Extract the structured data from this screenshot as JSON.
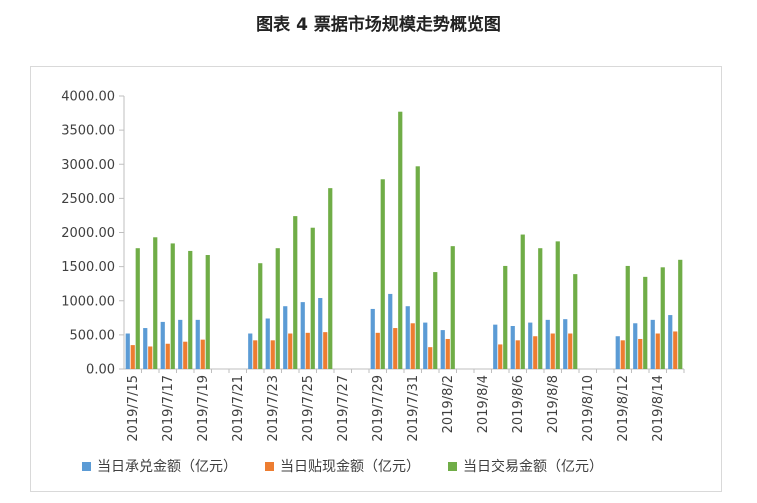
{
  "title": "图表 4  票据市场规模走势概览图",
  "chart_data": {
    "type": "bar",
    "ylim": [
      0,
      4000
    ],
    "yticks": [
      "0.00",
      "500.00",
      "1000.00",
      "1500.00",
      "2000.00",
      "2500.00",
      "3000.00",
      "3500.00",
      "4000.00"
    ],
    "categories": [
      "2019/7/15",
      "2019/7/16",
      "2019/7/17",
      "2019/7/18",
      "2019/7/19",
      "2019/7/20",
      "2019/7/21",
      "2019/7/22",
      "2019/7/23",
      "2019/7/24",
      "2019/7/25",
      "2019/7/26",
      "2019/7/27",
      "2019/7/28",
      "2019/7/29",
      "2019/7/30",
      "2019/7/31",
      "2019/8/1",
      "2019/8/2",
      "2019/8/3",
      "2019/8/4",
      "2019/8/5",
      "2019/8/6",
      "2019/8/7",
      "2019/8/8",
      "2019/8/9",
      "2019/8/10",
      "2019/8/11",
      "2019/8/12",
      "2019/8/13",
      "2019/8/14",
      "2019/8/15"
    ],
    "xtick_labels": [
      "2019/7/15",
      "2019/7/17",
      "2019/7/19",
      "2019/7/21",
      "2019/7/23",
      "2019/7/25",
      "2019/7/27",
      "2019/7/29",
      "2019/7/31",
      "2019/8/2",
      "2019/8/4",
      "2019/8/6",
      "2019/8/8",
      "2019/8/10",
      "2019/8/12",
      "2019/8/14"
    ],
    "series": [
      {
        "name": "当日承兑金额（亿元）",
        "color": "#5b9bd5",
        "values": [
          520,
          600,
          690,
          720,
          720,
          0,
          0,
          520,
          740,
          920,
          980,
          1040,
          0,
          0,
          880,
          1100,
          920,
          680,
          570,
          0,
          0,
          650,
          630,
          680,
          720,
          730,
          0,
          0,
          480,
          670,
          720,
          790
        ]
      },
      {
        "name": "当日贴现金额（亿元）",
        "color": "#ed7d31",
        "values": [
          350,
          330,
          370,
          400,
          430,
          0,
          0,
          420,
          420,
          520,
          530,
          540,
          0,
          0,
          530,
          600,
          670,
          320,
          440,
          0,
          0,
          360,
          420,
          480,
          520,
          520,
          0,
          0,
          420,
          440,
          520,
          550
        ]
      },
      {
        "name": "当日交易金额（亿元）",
        "color": "#70ad47",
        "values": [
          1770,
          1930,
          1840,
          1730,
          1670,
          0,
          0,
          1550,
          1770,
          2240,
          2070,
          2650,
          0,
          0,
          2780,
          3770,
          2970,
          1420,
          1800,
          0,
          0,
          1510,
          1970,
          1770,
          1870,
          1390,
          0,
          0,
          1510,
          1350,
          1490,
          1600
        ]
      }
    ]
  }
}
